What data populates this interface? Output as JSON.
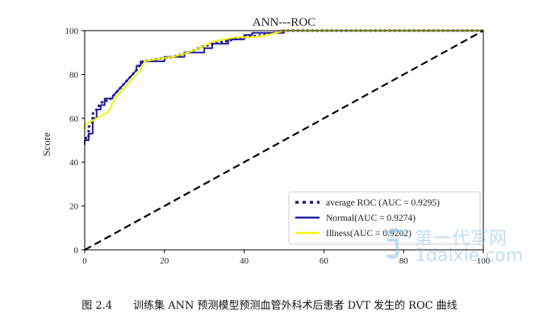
{
  "chart_data": {
    "type": "line",
    "title": "ANN---ROC",
    "xlabel": "",
    "ylabel": "Score",
    "xlim": [
      0,
      100
    ],
    "ylim": [
      0,
      100
    ],
    "xticks": [
      0,
      20,
      40,
      60,
      80,
      100
    ],
    "yticks": [
      0,
      20,
      40,
      60,
      80,
      100
    ],
    "xtick_labels": [
      "0",
      "20",
      "40",
      "60",
      "80",
      "100"
    ],
    "ytick_labels": [
      "0",
      "20",
      "40",
      "60",
      "80",
      "100"
    ],
    "grid": false,
    "legend_position": "lower-right",
    "series": [
      {
        "name": "average ROC (AUC = 0.9295)",
        "color": "#1a1a7a",
        "style": "dotted",
        "x": [
          0,
          1,
          1,
          2,
          2,
          3,
          4,
          5,
          6,
          7,
          8,
          9,
          10,
          11,
          12,
          13,
          14,
          15,
          18,
          22,
          26,
          30,
          35,
          40,
          45,
          50,
          100
        ],
        "y": [
          51,
          51,
          56,
          58,
          62,
          64,
          67,
          68,
          68,
          70,
          72,
          74,
          76,
          78,
          80,
          82,
          85,
          86,
          87,
          88,
          90,
          93,
          95,
          97,
          98,
          100,
          100
        ]
      },
      {
        "name": "Normal(AUC = 0.9274)",
        "color": "#1f1f9e",
        "style": "solid",
        "x": [
          0,
          0,
          1,
          1,
          2,
          2,
          3,
          3,
          4,
          4,
          5,
          5,
          7,
          7,
          8,
          9,
          10,
          11,
          12,
          13,
          13,
          14,
          14,
          20,
          20,
          25,
          25,
          30,
          30,
          32,
          32,
          36,
          36,
          40,
          40,
          42,
          42,
          50,
          50,
          100
        ],
        "y": [
          48,
          50,
          50,
          53,
          53,
          60,
          60,
          64,
          64,
          66,
          66,
          69,
          69,
          70,
          72,
          74,
          76,
          78,
          80,
          82,
          84,
          84,
          86,
          86,
          88,
          88,
          90,
          90,
          92,
          92,
          94,
          94,
          96,
          96,
          98,
          98,
          99,
          99,
          100,
          100
        ]
      },
      {
        "name": "Illness(AUC = 0.9202)",
        "color": "#f2f20a",
        "style": "solid",
        "x": [
          0,
          0,
          1,
          2,
          3,
          4,
          5,
          6,
          7,
          8,
          9,
          10,
          11,
          12,
          13,
          14,
          15,
          18,
          22,
          26,
          30,
          32,
          35,
          38,
          42,
          46,
          50,
          55,
          100
        ],
        "y": [
          55,
          57,
          58,
          59,
          60,
          61,
          62,
          63,
          67,
          70,
          72,
          74,
          76,
          78,
          80,
          82,
          86,
          87,
          88,
          90,
          93,
          95,
          96,
          97,
          97,
          98,
          100,
          100,
          100
        ]
      },
      {
        "name": "",
        "color": "#000000",
        "style": "dashed",
        "x": [
          0,
          100
        ],
        "y": [
          0,
          100
        ]
      }
    ]
  },
  "caption": "图 2.4　　训练集 ANN 预测模型预测血管外科术后患者 DVT 发生的 ROC 曲线",
  "watermark": {
    "site_cn": "第一代写网",
    "site": "1daixie.com"
  }
}
